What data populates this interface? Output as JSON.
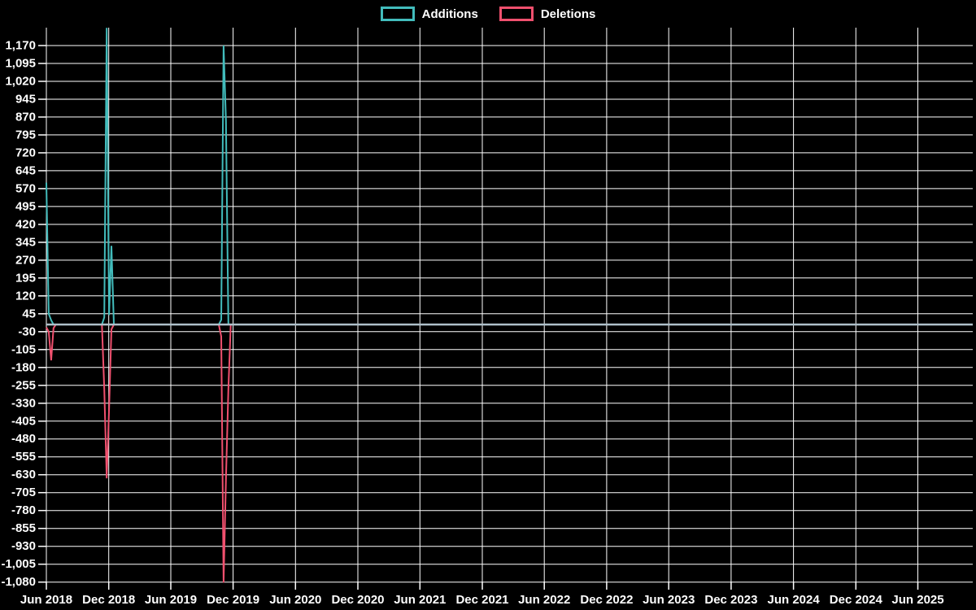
{
  "legend": {
    "items": [
      {
        "label": "Additions",
        "color": "#42bcbc"
      },
      {
        "label": "Deletions",
        "color": "#f0506e"
      }
    ]
  },
  "colors": {
    "background": "#000000",
    "gridline": "#ffffff",
    "tick_text": "#ffffff",
    "additions": "#42bcbc",
    "deletions": "#f0506e",
    "zero_baseline": "#aec0ca"
  },
  "chart_data": {
    "type": "line",
    "title": "",
    "xlabel": "",
    "ylabel": "",
    "grid": true,
    "legend_position": "top-center",
    "xdomain": [
      "2018-06-01",
      "2025-11-09"
    ],
    "ylim": [
      -1088,
      1245
    ],
    "y_tick_labels": [
      "1,170",
      "1,095",
      "1,020",
      "945",
      "870",
      "795",
      "720",
      "645",
      "570",
      "495",
      "420",
      "345",
      "270",
      "195",
      "120",
      "45",
      "-30",
      "-105",
      "-180",
      "-255",
      "-330",
      "-405",
      "-480",
      "-555",
      "-630",
      "-705",
      "-780",
      "-855",
      "-930",
      "-1,005",
      "-1,080"
    ],
    "x_ticks": [
      {
        "label": "Jun 2018",
        "date": "2018-06-01"
      },
      {
        "label": "Dec 2018",
        "date": "2018-12-01"
      },
      {
        "label": "Jun 2019",
        "date": "2019-06-01"
      },
      {
        "label": "Dec 2019",
        "date": "2019-12-01"
      },
      {
        "label": "Jun 2020",
        "date": "2020-06-01"
      },
      {
        "label": "Dec 2020",
        "date": "2020-12-01"
      },
      {
        "label": "Jun 2021",
        "date": "2021-06-01"
      },
      {
        "label": "Dec 2021",
        "date": "2021-12-01"
      },
      {
        "label": "Jun 2022",
        "date": "2022-06-01"
      },
      {
        "label": "Dec 2022",
        "date": "2022-12-01"
      },
      {
        "label": "Jun 2023",
        "date": "2023-06-01"
      },
      {
        "label": "Dec 2023",
        "date": "2023-12-01"
      },
      {
        "label": "Jun 2024",
        "date": "2024-06-01"
      },
      {
        "label": "Dec 2024",
        "date": "2024-12-01"
      },
      {
        "label": "Jun 2025",
        "date": "2025-06-01"
      }
    ],
    "series": [
      {
        "name": "Additions",
        "color": "#42bcbc",
        "points": [
          [
            "2018-06-01",
            595
          ],
          [
            "2018-06-08",
            45
          ],
          [
            "2018-06-15",
            18
          ],
          [
            "2018-06-22",
            0
          ],
          [
            "2018-11-11",
            0
          ],
          [
            "2018-11-18",
            30
          ],
          [
            "2018-11-25",
            1244
          ],
          [
            "2018-12-02",
            40
          ],
          [
            "2018-12-09",
            330
          ],
          [
            "2018-12-16",
            0
          ],
          [
            "2019-10-20",
            0
          ],
          [
            "2019-10-27",
            20
          ],
          [
            "2019-11-03",
            1170
          ],
          [
            "2019-11-10",
            855
          ],
          [
            "2019-11-17",
            0
          ],
          [
            "2025-11-09",
            0
          ]
        ]
      },
      {
        "name": "Deletions",
        "color": "#f0506e",
        "points": [
          [
            "2018-06-01",
            -12
          ],
          [
            "2018-06-08",
            -30
          ],
          [
            "2018-06-15",
            -150
          ],
          [
            "2018-06-22",
            -15
          ],
          [
            "2018-06-29",
            0
          ],
          [
            "2018-11-11",
            0
          ],
          [
            "2018-11-18",
            -270
          ],
          [
            "2018-11-25",
            -645
          ],
          [
            "2018-12-02",
            -355
          ],
          [
            "2018-12-09",
            -20
          ],
          [
            "2018-12-16",
            0
          ],
          [
            "2019-10-20",
            0
          ],
          [
            "2019-10-27",
            -50
          ],
          [
            "2019-11-03",
            -1082
          ],
          [
            "2019-11-10",
            -650
          ],
          [
            "2019-11-17",
            -270
          ],
          [
            "2019-11-24",
            0
          ],
          [
            "2025-11-09",
            0
          ]
        ]
      }
    ]
  }
}
